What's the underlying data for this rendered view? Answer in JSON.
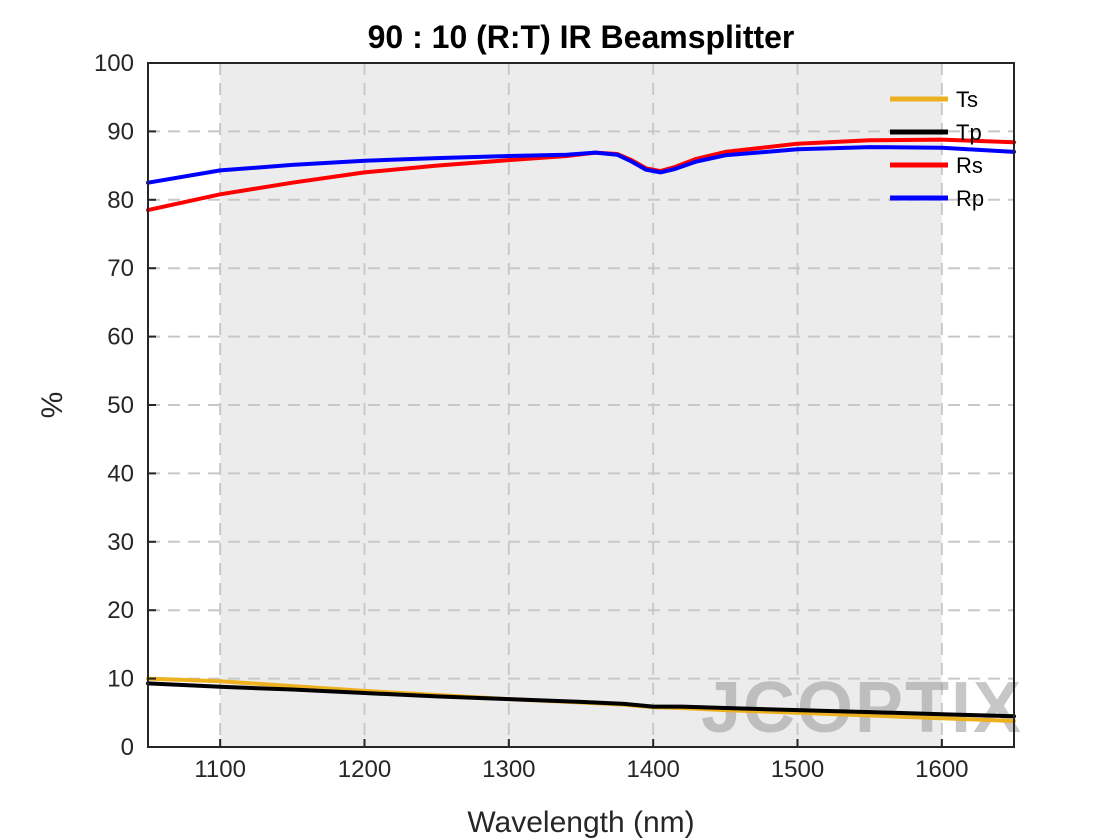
{
  "watermark": {
    "text": "JCOPTIX"
  },
  "chart_data": {
    "type": "line",
    "title": "90 : 10 (R:T) IR Beamsplitter",
    "xlabel": "Wavelength (nm)",
    "ylabel": "%",
    "xlim": [
      1050,
      1650
    ],
    "ylim": [
      0,
      100
    ],
    "xticks": [
      1100,
      1200,
      1300,
      1400,
      1500,
      1600
    ],
    "yticks": [
      0,
      10,
      20,
      30,
      40,
      50,
      60,
      70,
      80,
      90,
      100
    ],
    "grid": true,
    "shaded_region": [
      1100,
      1600
    ],
    "legend_position": "top-right",
    "series": [
      {
        "name": "Ts",
        "color": "#EDB120",
        "x": [
          1050,
          1100,
          1150,
          1200,
          1250,
          1300,
          1350,
          1380,
          1400,
          1420,
          1450,
          1500,
          1550,
          1600,
          1650
        ],
        "y": [
          10.0,
          9.6,
          8.9,
          8.2,
          7.6,
          7.0,
          6.5,
          6.2,
          5.8,
          5.7,
          5.4,
          5.0,
          4.6,
          4.2,
          3.8
        ]
      },
      {
        "name": "Tp",
        "color": "#000000",
        "x": [
          1050,
          1100,
          1150,
          1200,
          1250,
          1300,
          1350,
          1380,
          1400,
          1420,
          1450,
          1500,
          1550,
          1600,
          1650
        ],
        "y": [
          9.3,
          8.8,
          8.4,
          7.9,
          7.4,
          7.0,
          6.6,
          6.3,
          5.9,
          5.9,
          5.7,
          5.4,
          5.1,
          4.8,
          4.5
        ]
      },
      {
        "name": "Rs",
        "color": "#FF0000",
        "x": [
          1050,
          1100,
          1150,
          1200,
          1250,
          1300,
          1340,
          1360,
          1375,
          1385,
          1395,
          1405,
          1415,
          1430,
          1450,
          1500,
          1550,
          1600,
          1650
        ],
        "y": [
          78.5,
          80.8,
          82.5,
          84.0,
          85.0,
          85.8,
          86.4,
          86.9,
          86.7,
          85.8,
          84.6,
          84.2,
          84.8,
          86.0,
          87.0,
          88.2,
          88.7,
          88.8,
          88.4
        ]
      },
      {
        "name": "Rp",
        "color": "#0000FF",
        "x": [
          1050,
          1100,
          1150,
          1200,
          1250,
          1300,
          1340,
          1360,
          1375,
          1385,
          1395,
          1405,
          1415,
          1430,
          1450,
          1500,
          1550,
          1600,
          1650
        ],
        "y": [
          82.5,
          84.3,
          85.1,
          85.7,
          86.1,
          86.4,
          86.6,
          86.9,
          86.6,
          85.6,
          84.4,
          84.0,
          84.5,
          85.6,
          86.5,
          87.4,
          87.7,
          87.6,
          87.0
        ]
      }
    ]
  }
}
